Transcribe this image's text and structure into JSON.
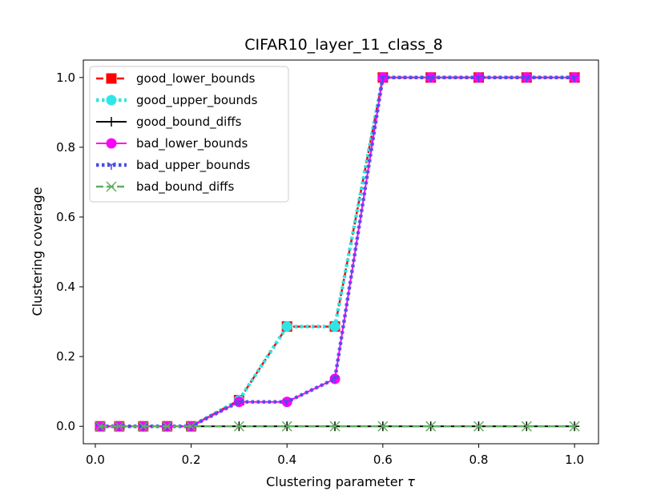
{
  "chart_data": {
    "type": "line",
    "title": "CIFAR10_layer_11_class_8",
    "xlabel": "Clustering parameter",
    "xlabel_symbol": "τ",
    "ylabel": "Clustering coverage",
    "xlim": [
      -0.025,
      1.05
    ],
    "ylim": [
      -0.05,
      1.05
    ],
    "xticks": [
      0.0,
      0.2,
      0.4,
      0.6,
      0.8,
      1.0
    ],
    "xtick_labels": [
      "0.0",
      "0.2",
      "0.4",
      "0.6",
      "0.8",
      "1.0"
    ],
    "yticks": [
      0.0,
      0.2,
      0.4,
      0.6,
      0.8,
      1.0
    ],
    "ytick_labels": [
      "0.0",
      "0.2",
      "0.4",
      "0.6",
      "0.8",
      "1.0"
    ],
    "grid": false,
    "legend_position": "upper-left",
    "x": [
      0.01,
      0.05,
      0.1,
      0.15,
      0.2,
      0.3,
      0.4,
      0.5,
      0.6,
      0.7,
      0.8,
      0.9,
      1.0
    ],
    "series": [
      {
        "name": "good_lower_bounds",
        "color": "#ff0000",
        "line_style": "dashed",
        "marker": "square",
        "values": [
          0,
          0,
          0,
          0,
          0,
          0.075,
          0.286,
          0.286,
          1,
          1,
          1,
          1,
          1
        ]
      },
      {
        "name": "good_upper_bounds",
        "color": "#2ee6e6",
        "line_style": "dotted",
        "marker": "circle",
        "values": [
          0,
          0,
          0,
          0,
          0,
          0.075,
          0.286,
          0.286,
          1,
          1,
          1,
          1,
          1
        ]
      },
      {
        "name": "good_bound_diffs",
        "color": "#000000",
        "line_style": "solid",
        "marker": "plus",
        "values": [
          0,
          0,
          0,
          0,
          0,
          0,
          0,
          0,
          0,
          0,
          0,
          0,
          0
        ]
      },
      {
        "name": "bad_lower_bounds",
        "color": "#ff00ff",
        "line_style": "solid",
        "marker": "circle",
        "values": [
          0,
          0,
          0,
          0,
          0,
          0.07,
          0.07,
          0.136,
          1,
          1,
          1,
          1,
          1
        ]
      },
      {
        "name": "bad_upper_bounds",
        "color": "#4b4be6",
        "line_style": "dotted",
        "marker": "tri_down",
        "values": [
          0,
          0,
          0,
          0,
          0,
          0.07,
          0.07,
          0.136,
          1,
          1,
          1,
          1,
          1
        ]
      },
      {
        "name": "bad_bound_diffs",
        "color": "#5faf5f",
        "line_style": "dashed",
        "marker": "x",
        "values": [
          0,
          0,
          0,
          0,
          0,
          0,
          0,
          0,
          0,
          0,
          0,
          0,
          0
        ]
      }
    ]
  }
}
